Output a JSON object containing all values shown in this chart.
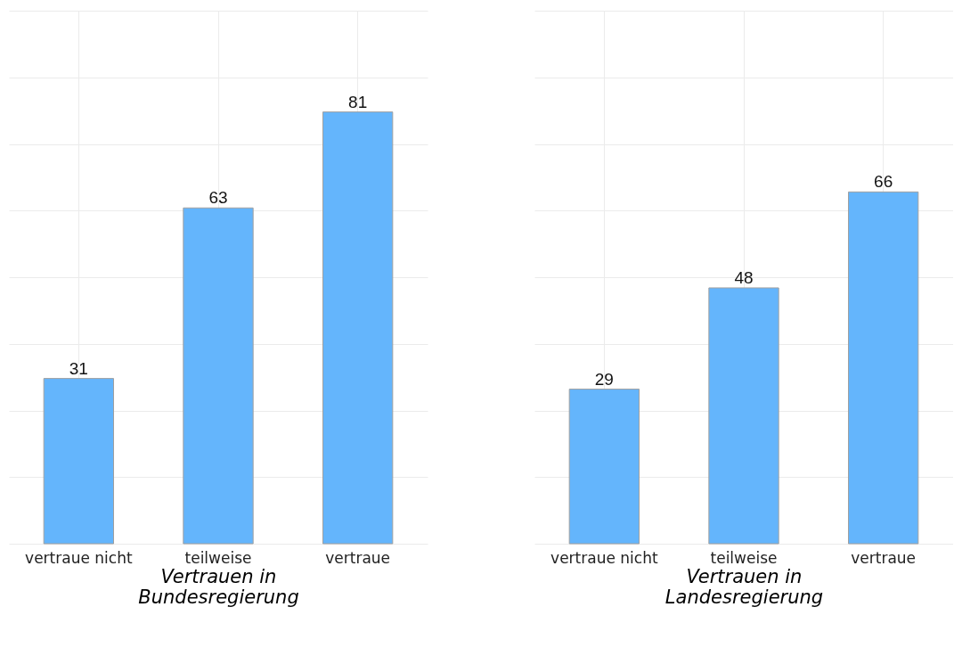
{
  "chart_data": [
    {
      "type": "bar",
      "xlabel": "Vertrauen in\nBundesregierung",
      "categories": [
        "vertraue nicht",
        "teilweise",
        "vertraue"
      ],
      "values": [
        31,
        63,
        81
      ],
      "color": "#64b5fc",
      "ylim": [
        0,
        100
      ],
      "yticks": [
        {
          "value": 0,
          "label": null
        },
        {
          "value": 12.5,
          "label": null
        },
        {
          "value": 25,
          "label": null
        },
        {
          "value": 37.5,
          "label": null
        },
        {
          "value": 50,
          "label": null
        },
        {
          "value": 62.5,
          "label": null
        },
        {
          "value": 75,
          "label": null
        },
        {
          "value": 87.5,
          "label": null
        },
        {
          "value": 100,
          "label": null
        }
      ],
      "grid": true,
      "tick_labels": "x",
      "data_labels": true
    },
    {
      "type": "bar",
      "xlabel": "Vertrauen in\nLandesregierung",
      "categories": [
        "vertraue nicht",
        "teilweise",
        "vertraue"
      ],
      "values": [
        29,
        48,
        66
      ],
      "color": "#64b5fc",
      "ylim": [
        0,
        100
      ],
      "yticks": [
        {
          "value": 0,
          "label": null
        },
        {
          "value": 12.5,
          "label": null
        },
        {
          "value": 25,
          "label": null
        },
        {
          "value": 37.5,
          "label": null
        },
        {
          "value": 50,
          "label": null
        },
        {
          "value": 62.5,
          "label": null
        },
        {
          "value": 75,
          "label": null
        },
        {
          "value": 87.5,
          "label": null
        },
        {
          "value": 100,
          "label": null
        }
      ],
      "grid": true,
      "tick_labels": "x",
      "data_labels": true
    }
  ]
}
